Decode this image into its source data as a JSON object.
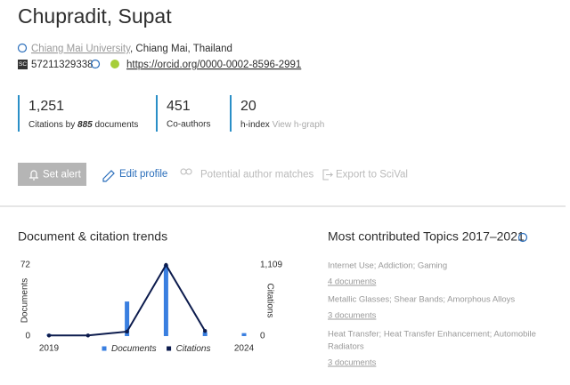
{
  "author": {
    "name": "Chupradit, Supat",
    "affiliation": "Chiang Mai University",
    "location": ", Chiang Mai, Thailand",
    "scopus_badge": "SC",
    "scopus_id": "57211329338",
    "orcid": "https://orcid.org/0000-0002-8596-2991"
  },
  "metrics": {
    "citations": {
      "value": "1,251",
      "label_start": "Citations by ",
      "documents": "885",
      "label_end": " documents"
    },
    "coauthors": {
      "value": "451",
      "label": "Co-authors"
    },
    "h_index": {
      "value": "20",
      "label": "h-index",
      "link": "View h-graph"
    }
  },
  "actions": [
    "Set alert",
    "Edit profile",
    "Potential author matches",
    "Export to SciVal"
  ],
  "chart_data": {
    "type": "combo",
    "title": "Document & citation trends",
    "categories": [
      "2019",
      null,
      null,
      null,
      null,
      "2024"
    ],
    "series": [
      {
        "name": "Documents",
        "type": "bar",
        "color": "#3a7fe0",
        "values": [
          2,
          1,
          35,
          72,
          4,
          3
        ]
      },
      {
        "name": "Citations",
        "type": "line",
        "axis": "y2",
        "color": "#0c1b4d",
        "values": [
          10,
          10,
          70,
          1109,
          80,
          null
        ]
      }
    ],
    "ylabel": "Documents",
    "y2label": "Citations",
    "ylim": [
      0,
      72
    ],
    "yticks": [
      0,
      72
    ],
    "y2lim": [
      0,
      1109
    ],
    "y2ticks": [
      0,
      {
        "value": 1109,
        "label": "1,109"
      }
    ]
  },
  "topics": {
    "title": "Most contributed Topics 2017–2021",
    "items": [
      {
        "name": "Internet Use; Addiction; Gaming",
        "documents": "4 documents"
      },
      {
        "name": "Metallic Glasses; Shear Bands; Amorphous Alloys",
        "documents": "3 documents"
      },
      {
        "name": [
          "Heat Transfer; Heat Transfer Enhancement; Automobile",
          "Radiators"
        ],
        "documents": "3 documents"
      }
    ]
  }
}
